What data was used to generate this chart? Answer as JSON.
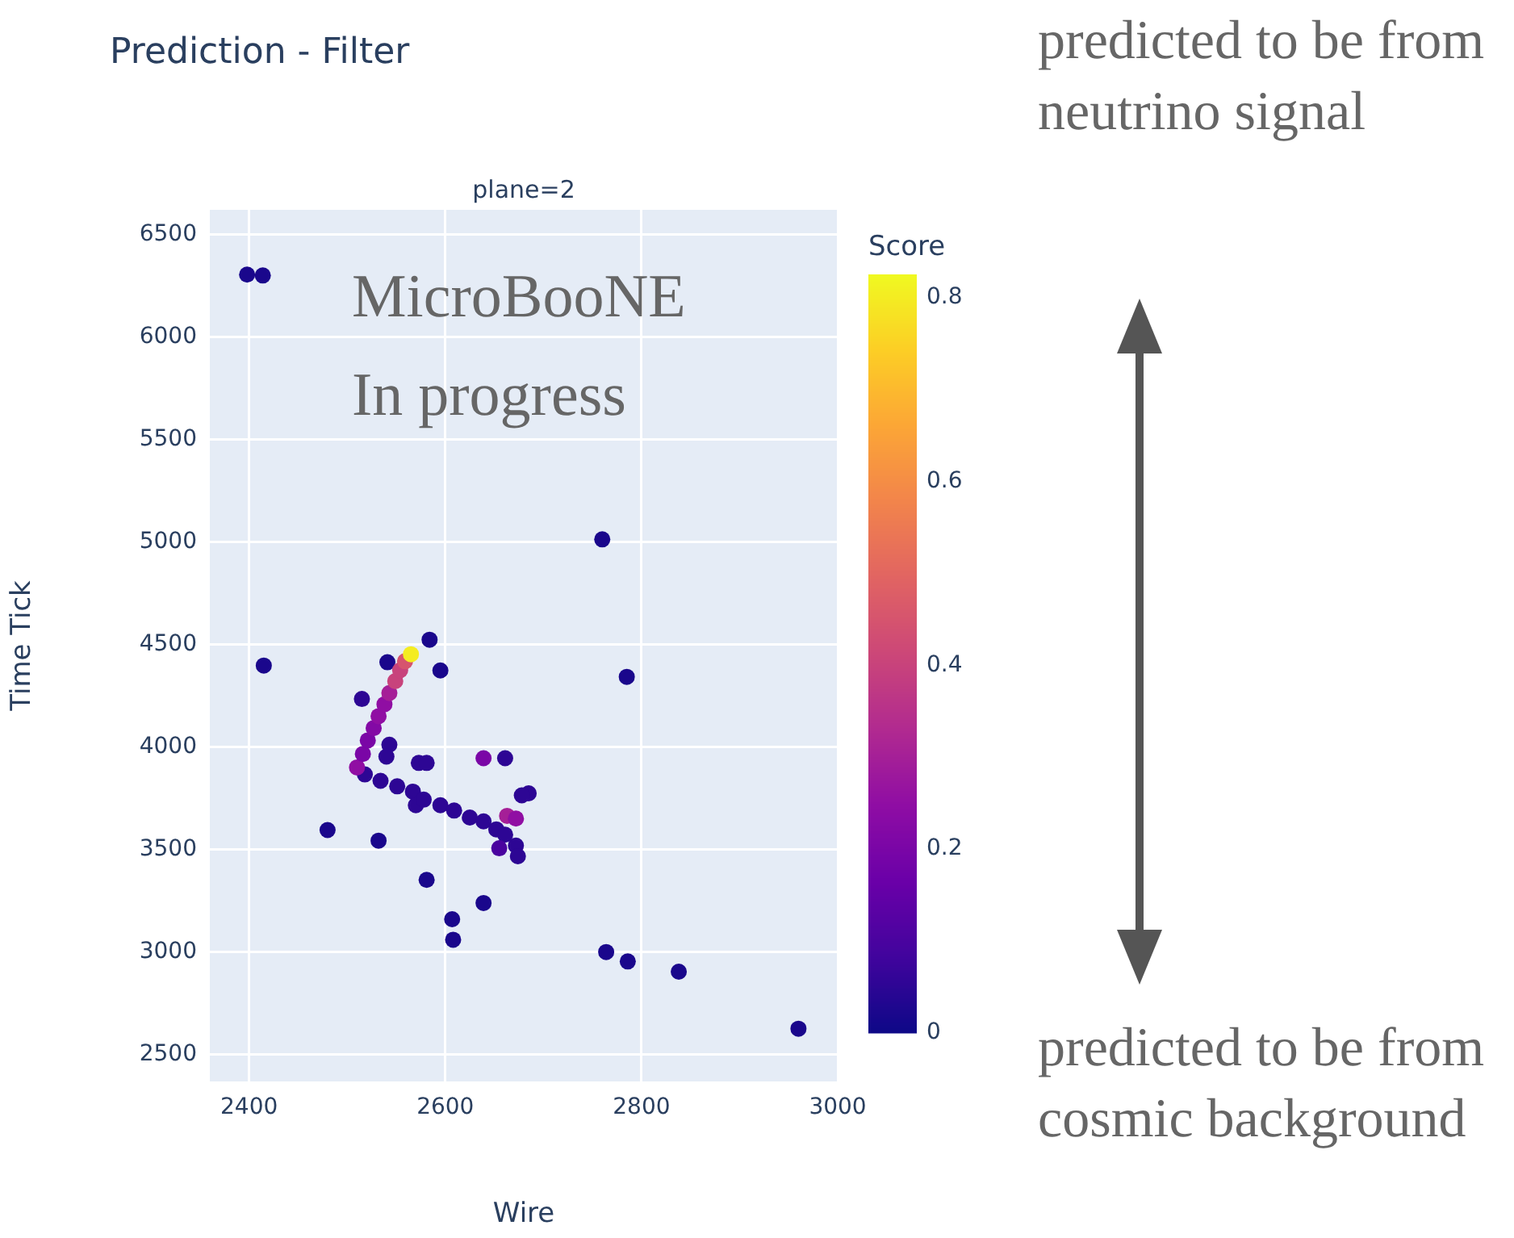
{
  "chart_data": {
    "type": "scatter",
    "title": "Prediction - Filter",
    "subtitle": "plane=2",
    "xlabel": "Wire",
    "ylabel": "Time Tick",
    "clabel": "Score",
    "annotations": [
      "MicroBooNE",
      "In progress",
      "predicted to be from neutrino signal",
      "predicted to be from cosmic background"
    ],
    "xlim": [
      2360,
      3000
    ],
    "xticks": [
      2400,
      2600,
      2800,
      3000
    ],
    "ylim": [
      2370,
      6620
    ],
    "yticks": [
      2500,
      3000,
      3500,
      4000,
      4500,
      5000,
      5500,
      6000,
      6500
    ],
    "clim": [
      0,
      0.825
    ],
    "cticks": [
      0,
      0.2,
      0.4,
      0.6,
      0.8
    ],
    "grid": true,
    "marker": "circle",
    "x": [
      2398,
      2414,
      2760,
      2584,
      2415,
      2541,
      2595,
      2785,
      2515,
      2543,
      2573,
      2581,
      2639,
      2661,
      2685,
      2678,
      2480,
      2532,
      2581,
      2639,
      2607,
      2608,
      2764,
      2786,
      2838,
      2960,
      2518,
      2534,
      2551,
      2567,
      2570,
      2578,
      2595,
      2609,
      2625,
      2639,
      2652,
      2661,
      2672,
      2674,
      2655,
      2540,
      2663,
      2672,
      2510,
      2516,
      2521,
      2527,
      2532,
      2538,
      2543,
      2549,
      2554,
      2559,
      2565
    ],
    "values": [
      6304,
      6300,
      5013,
      4524,
      4398,
      4414,
      4374,
      4343,
      4235,
      4012,
      3923,
      3923,
      3946,
      3946,
      3775,
      3765,
      3596,
      3544,
      3353,
      3240,
      3161,
      3061,
      3001,
      2955,
      2905,
      2627,
      3867,
      3836,
      3809,
      3783,
      3717,
      3744,
      3717,
      3691,
      3657,
      3638,
      3599,
      3573,
      3520,
      3468,
      3507,
      3954,
      3665,
      3652,
      3901,
      3967,
      4033,
      4093,
      4151,
      4209,
      4264,
      4322,
      4375,
      4419,
      4453
    ],
    "cvalues": [
      0.02,
      0.02,
      0.02,
      0.02,
      0.02,
      0.02,
      0.02,
      0.02,
      0.05,
      0.05,
      0.05,
      0.05,
      0.2,
      0.05,
      0.05,
      0.05,
      0.02,
      0.02,
      0.02,
      0.02,
      0.02,
      0.02,
      0.02,
      0.02,
      0.02,
      0.02,
      0.05,
      0.05,
      0.05,
      0.05,
      0.05,
      0.05,
      0.05,
      0.05,
      0.05,
      0.05,
      0.05,
      0.05,
      0.05,
      0.05,
      0.1,
      0.05,
      0.3,
      0.25,
      0.25,
      0.2,
      0.2,
      0.22,
      0.25,
      0.25,
      0.3,
      0.4,
      0.4,
      0.45,
      0.8
    ]
  }
}
